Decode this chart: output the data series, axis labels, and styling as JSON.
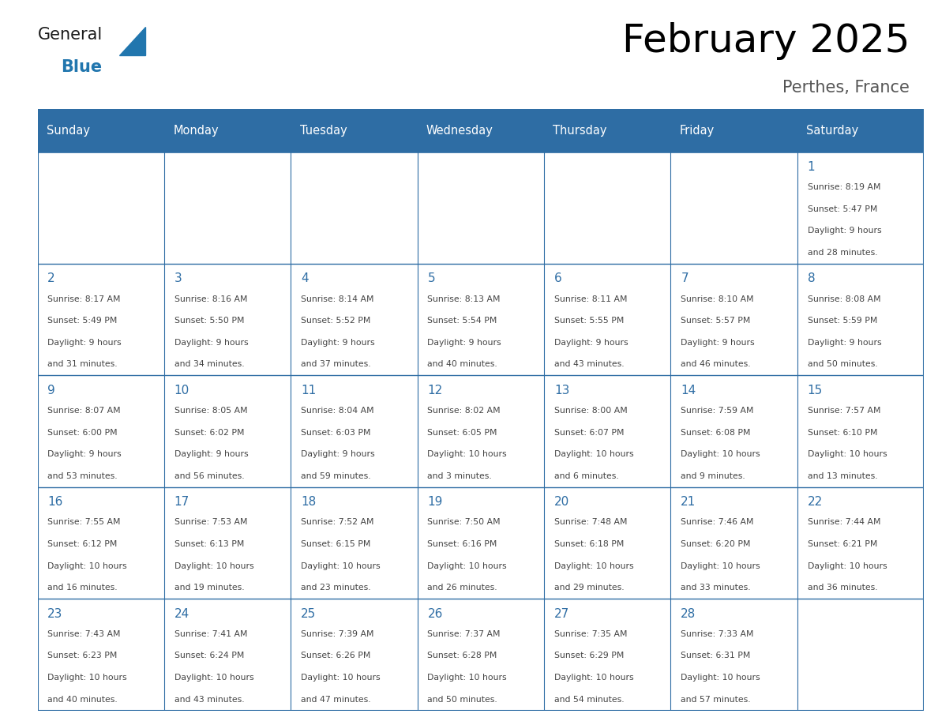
{
  "title": "February 2025",
  "subtitle": "Perthes, France",
  "title_fontsize": 36,
  "subtitle_fontsize": 15,
  "header_bg_color": "#2E6DA4",
  "header_text_color": "#FFFFFF",
  "cell_bg_color": "#FFFFFF",
  "grid_color": "#2E6DA4",
  "day_number_color": "#2E6DA4",
  "text_color": "#444444",
  "days_of_week": [
    "Sunday",
    "Monday",
    "Tuesday",
    "Wednesday",
    "Thursday",
    "Friday",
    "Saturday"
  ],
  "logo_general_color": "#1a1a1a",
  "logo_blue_color": "#2176AE",
  "weeks": [
    [
      null,
      null,
      null,
      null,
      null,
      null,
      {
        "day": 1,
        "sunrise": "8:19 AM",
        "sunset": "5:47 PM",
        "daylight_hours": 9,
        "daylight_minutes": 28
      }
    ],
    [
      {
        "day": 2,
        "sunrise": "8:17 AM",
        "sunset": "5:49 PM",
        "daylight_hours": 9,
        "daylight_minutes": 31
      },
      {
        "day": 3,
        "sunrise": "8:16 AM",
        "sunset": "5:50 PM",
        "daylight_hours": 9,
        "daylight_minutes": 34
      },
      {
        "day": 4,
        "sunrise": "8:14 AM",
        "sunset": "5:52 PM",
        "daylight_hours": 9,
        "daylight_minutes": 37
      },
      {
        "day": 5,
        "sunrise": "8:13 AM",
        "sunset": "5:54 PM",
        "daylight_hours": 9,
        "daylight_minutes": 40
      },
      {
        "day": 6,
        "sunrise": "8:11 AM",
        "sunset": "5:55 PM",
        "daylight_hours": 9,
        "daylight_minutes": 43
      },
      {
        "day": 7,
        "sunrise": "8:10 AM",
        "sunset": "5:57 PM",
        "daylight_hours": 9,
        "daylight_minutes": 46
      },
      {
        "day": 8,
        "sunrise": "8:08 AM",
        "sunset": "5:59 PM",
        "daylight_hours": 9,
        "daylight_minutes": 50
      }
    ],
    [
      {
        "day": 9,
        "sunrise": "8:07 AM",
        "sunset": "6:00 PM",
        "daylight_hours": 9,
        "daylight_minutes": 53
      },
      {
        "day": 10,
        "sunrise": "8:05 AM",
        "sunset": "6:02 PM",
        "daylight_hours": 9,
        "daylight_minutes": 56
      },
      {
        "day": 11,
        "sunrise": "8:04 AM",
        "sunset": "6:03 PM",
        "daylight_hours": 9,
        "daylight_minutes": 59
      },
      {
        "day": 12,
        "sunrise": "8:02 AM",
        "sunset": "6:05 PM",
        "daylight_hours": 10,
        "daylight_minutes": 3
      },
      {
        "day": 13,
        "sunrise": "8:00 AM",
        "sunset": "6:07 PM",
        "daylight_hours": 10,
        "daylight_minutes": 6
      },
      {
        "day": 14,
        "sunrise": "7:59 AM",
        "sunset": "6:08 PM",
        "daylight_hours": 10,
        "daylight_minutes": 9
      },
      {
        "day": 15,
        "sunrise": "7:57 AM",
        "sunset": "6:10 PM",
        "daylight_hours": 10,
        "daylight_minutes": 13
      }
    ],
    [
      {
        "day": 16,
        "sunrise": "7:55 AM",
        "sunset": "6:12 PM",
        "daylight_hours": 10,
        "daylight_minutes": 16
      },
      {
        "day": 17,
        "sunrise": "7:53 AM",
        "sunset": "6:13 PM",
        "daylight_hours": 10,
        "daylight_minutes": 19
      },
      {
        "day": 18,
        "sunrise": "7:52 AM",
        "sunset": "6:15 PM",
        "daylight_hours": 10,
        "daylight_minutes": 23
      },
      {
        "day": 19,
        "sunrise": "7:50 AM",
        "sunset": "6:16 PM",
        "daylight_hours": 10,
        "daylight_minutes": 26
      },
      {
        "day": 20,
        "sunrise": "7:48 AM",
        "sunset": "6:18 PM",
        "daylight_hours": 10,
        "daylight_minutes": 29
      },
      {
        "day": 21,
        "sunrise": "7:46 AM",
        "sunset": "6:20 PM",
        "daylight_hours": 10,
        "daylight_minutes": 33
      },
      {
        "day": 22,
        "sunrise": "7:44 AM",
        "sunset": "6:21 PM",
        "daylight_hours": 10,
        "daylight_minutes": 36
      }
    ],
    [
      {
        "day": 23,
        "sunrise": "7:43 AM",
        "sunset": "6:23 PM",
        "daylight_hours": 10,
        "daylight_minutes": 40
      },
      {
        "day": 24,
        "sunrise": "7:41 AM",
        "sunset": "6:24 PM",
        "daylight_hours": 10,
        "daylight_minutes": 43
      },
      {
        "day": 25,
        "sunrise": "7:39 AM",
        "sunset": "6:26 PM",
        "daylight_hours": 10,
        "daylight_minutes": 47
      },
      {
        "day": 26,
        "sunrise": "7:37 AM",
        "sunset": "6:28 PM",
        "daylight_hours": 10,
        "daylight_minutes": 50
      },
      {
        "day": 27,
        "sunrise": "7:35 AM",
        "sunset": "6:29 PM",
        "daylight_hours": 10,
        "daylight_minutes": 54
      },
      {
        "day": 28,
        "sunrise": "7:33 AM",
        "sunset": "6:31 PM",
        "daylight_hours": 10,
        "daylight_minutes": 57
      },
      null
    ]
  ]
}
